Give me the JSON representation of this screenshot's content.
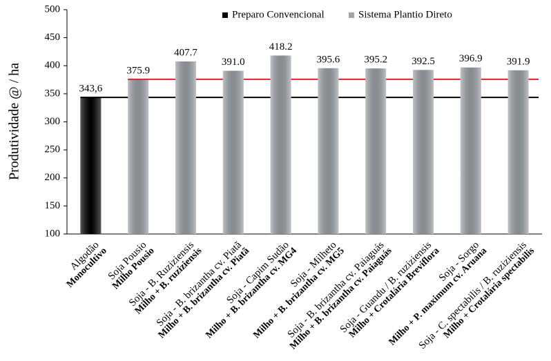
{
  "chart_data": {
    "type": "bar",
    "y_label": "Produtividade @ / ha",
    "categories": [
      "Algodão",
      "Soja Pousio",
      "Soja - B. Ruziziensis",
      "Soja - B. brizantha cv. Piatã",
      "Soja - Capim Sudão",
      "Soja - Milheto",
      "Soja - B. brizantha cv. Paiaguás",
      "Soja - Guandu / B. ruziziensis",
      "Soja - Sorgo",
      "Soja - C. spectabilis / B. ruziziensis"
    ],
    "categories_secondary": [
      "Monocultivo",
      "Milho Pousio",
      "Milho + B. ruziziensis",
      "Milho + B. brizantha cv. Piatã",
      "Milho + B. brizantha cv. MG4",
      "Milho + B. brizantha cv. MG5",
      "Milho + B. brizantha cv. Paiaguás",
      "Milho + Crotalária  Breviflora",
      "Milho + P. maximum cv. Aruana",
      "Milho + Crotalária  spectabilis"
    ],
    "secondary_color": "#2e9e4a",
    "series": [
      {
        "name": "Preparo Convencional",
        "color": "#000000",
        "reference_line_color": "#000000",
        "values": [
          343.6,
          null,
          null,
          null,
          null,
          null,
          null,
          null,
          null,
          null
        ],
        "value_labels": [
          "343,6",
          null,
          null,
          null,
          null,
          null,
          null,
          null,
          null,
          null
        ]
      },
      {
        "name": "Sistema Plantio Direto",
        "color": "#9ea4aa",
        "reference_line_color": "#e0202a",
        "values": [
          null,
          375.9,
          407.7,
          391.0,
          418.2,
          395.6,
          395.2,
          392.5,
          396.9,
          391.9
        ],
        "value_labels": [
          null,
          "375.9",
          "407.7",
          "391.0",
          "418.2",
          "395.6",
          "395.2",
          "392.5",
          "396.9",
          "391.9"
        ]
      }
    ],
    "ylim": [
      100,
      500
    ],
    "yticks": [
      100,
      150,
      200,
      250,
      300,
      350,
      400,
      450,
      500
    ],
    "grid": false
  }
}
